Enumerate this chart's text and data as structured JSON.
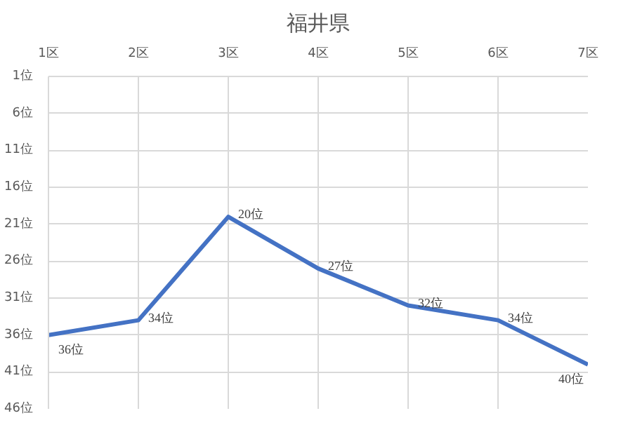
{
  "chart_data": {
    "type": "line",
    "title": "福井県",
    "categories": [
      "1区",
      "2区",
      "3区",
      "4区",
      "5区",
      "6区",
      "7区"
    ],
    "series": [
      {
        "color": "#4472c4",
        "values": [
          36,
          34,
          20,
          27,
          32,
          34,
          40
        ]
      }
    ],
    "value_labels": [
      "36位",
      "34位",
      "20位",
      "27位",
      "32位",
      "34位",
      "40位"
    ],
    "ylim": [
      46,
      1
    ],
    "yticks": [
      {
        "value": 1,
        "label": "1位"
      },
      {
        "value": 6,
        "label": "6位"
      },
      {
        "value": 11,
        "label": "11位"
      },
      {
        "value": 16,
        "label": "16位"
      },
      {
        "value": 21,
        "label": "21位"
      },
      {
        "value": 26,
        "label": "26位"
      },
      {
        "value": 31,
        "label": "31位"
      },
      {
        "value": 36,
        "label": "36位"
      },
      {
        "value": 41,
        "label": "41位"
      },
      {
        "value": 46,
        "label": "46位"
      }
    ],
    "grid": true,
    "marker": "none",
    "line_style": "solid"
  }
}
